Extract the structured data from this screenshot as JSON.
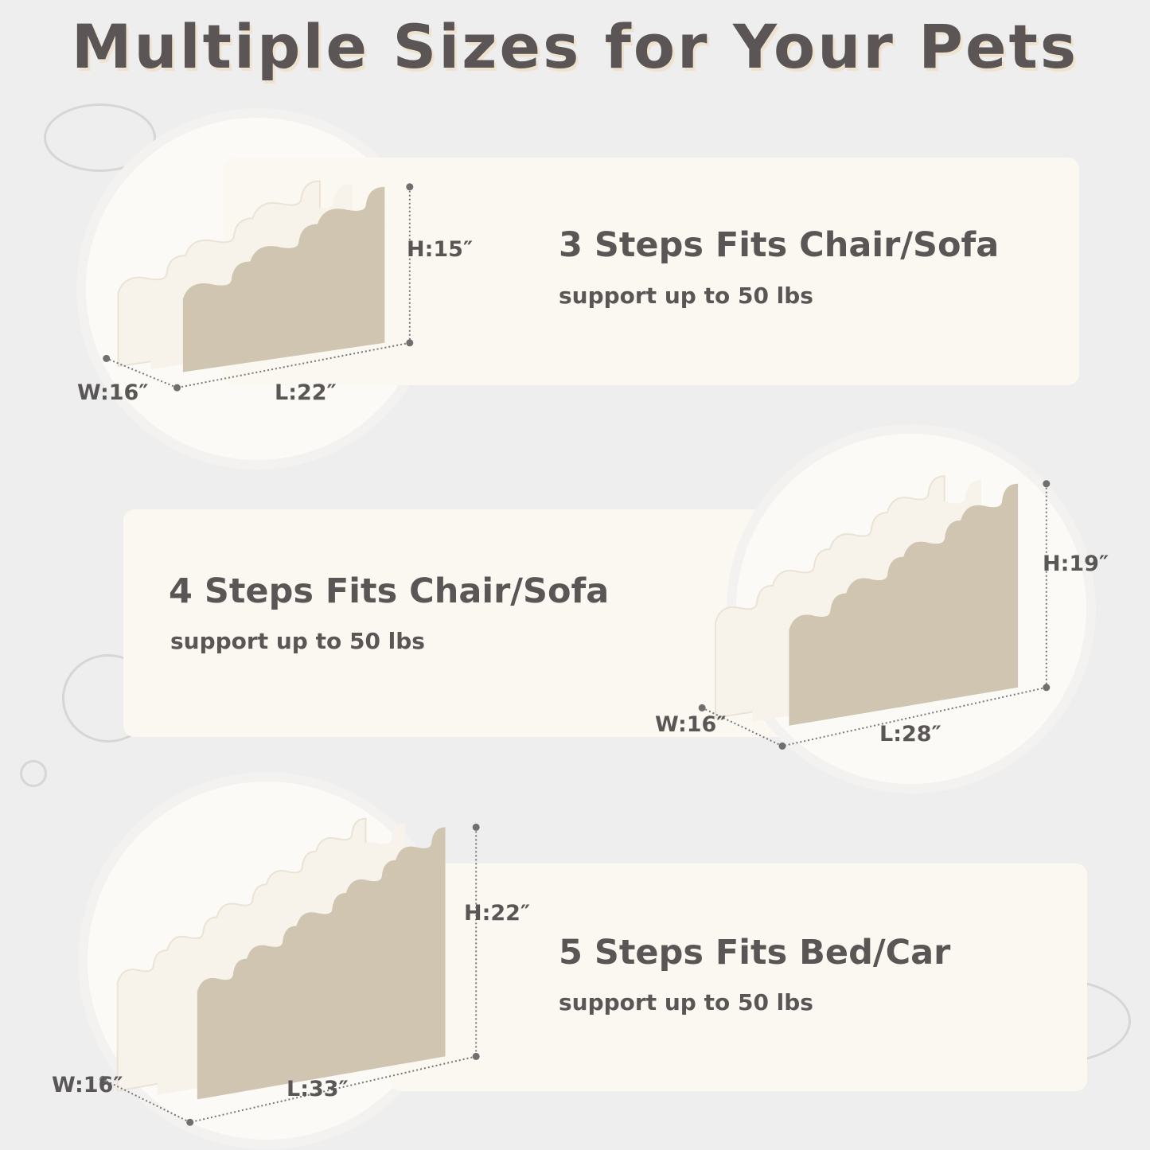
{
  "title": "Multiple Sizes for Your Pets",
  "colors": {
    "background": "#eeeeef",
    "panel": "#fbf8f2",
    "side": "#cfc5b0",
    "fleece": "#f7f3ea",
    "text": "#5a5656"
  },
  "products": [
    {
      "steps": 3,
      "title": "3 Steps Fits Chair/Sofa",
      "subtitle": "support up to 50 lbs",
      "height": "H:15″",
      "width": "W:16″",
      "length": "L:22″"
    },
    {
      "steps": 4,
      "title": "4 Steps Fits Chair/Sofa",
      "subtitle": "support up to 50 lbs",
      "height": "H:19″",
      "width": "W:16″",
      "length": "L:28″"
    },
    {
      "steps": 5,
      "title": "5 Steps Fits Bed/Car",
      "subtitle": "support up to 50 lbs",
      "height": "H:22″",
      "width": "W:16″",
      "length": "L:33″"
    }
  ]
}
